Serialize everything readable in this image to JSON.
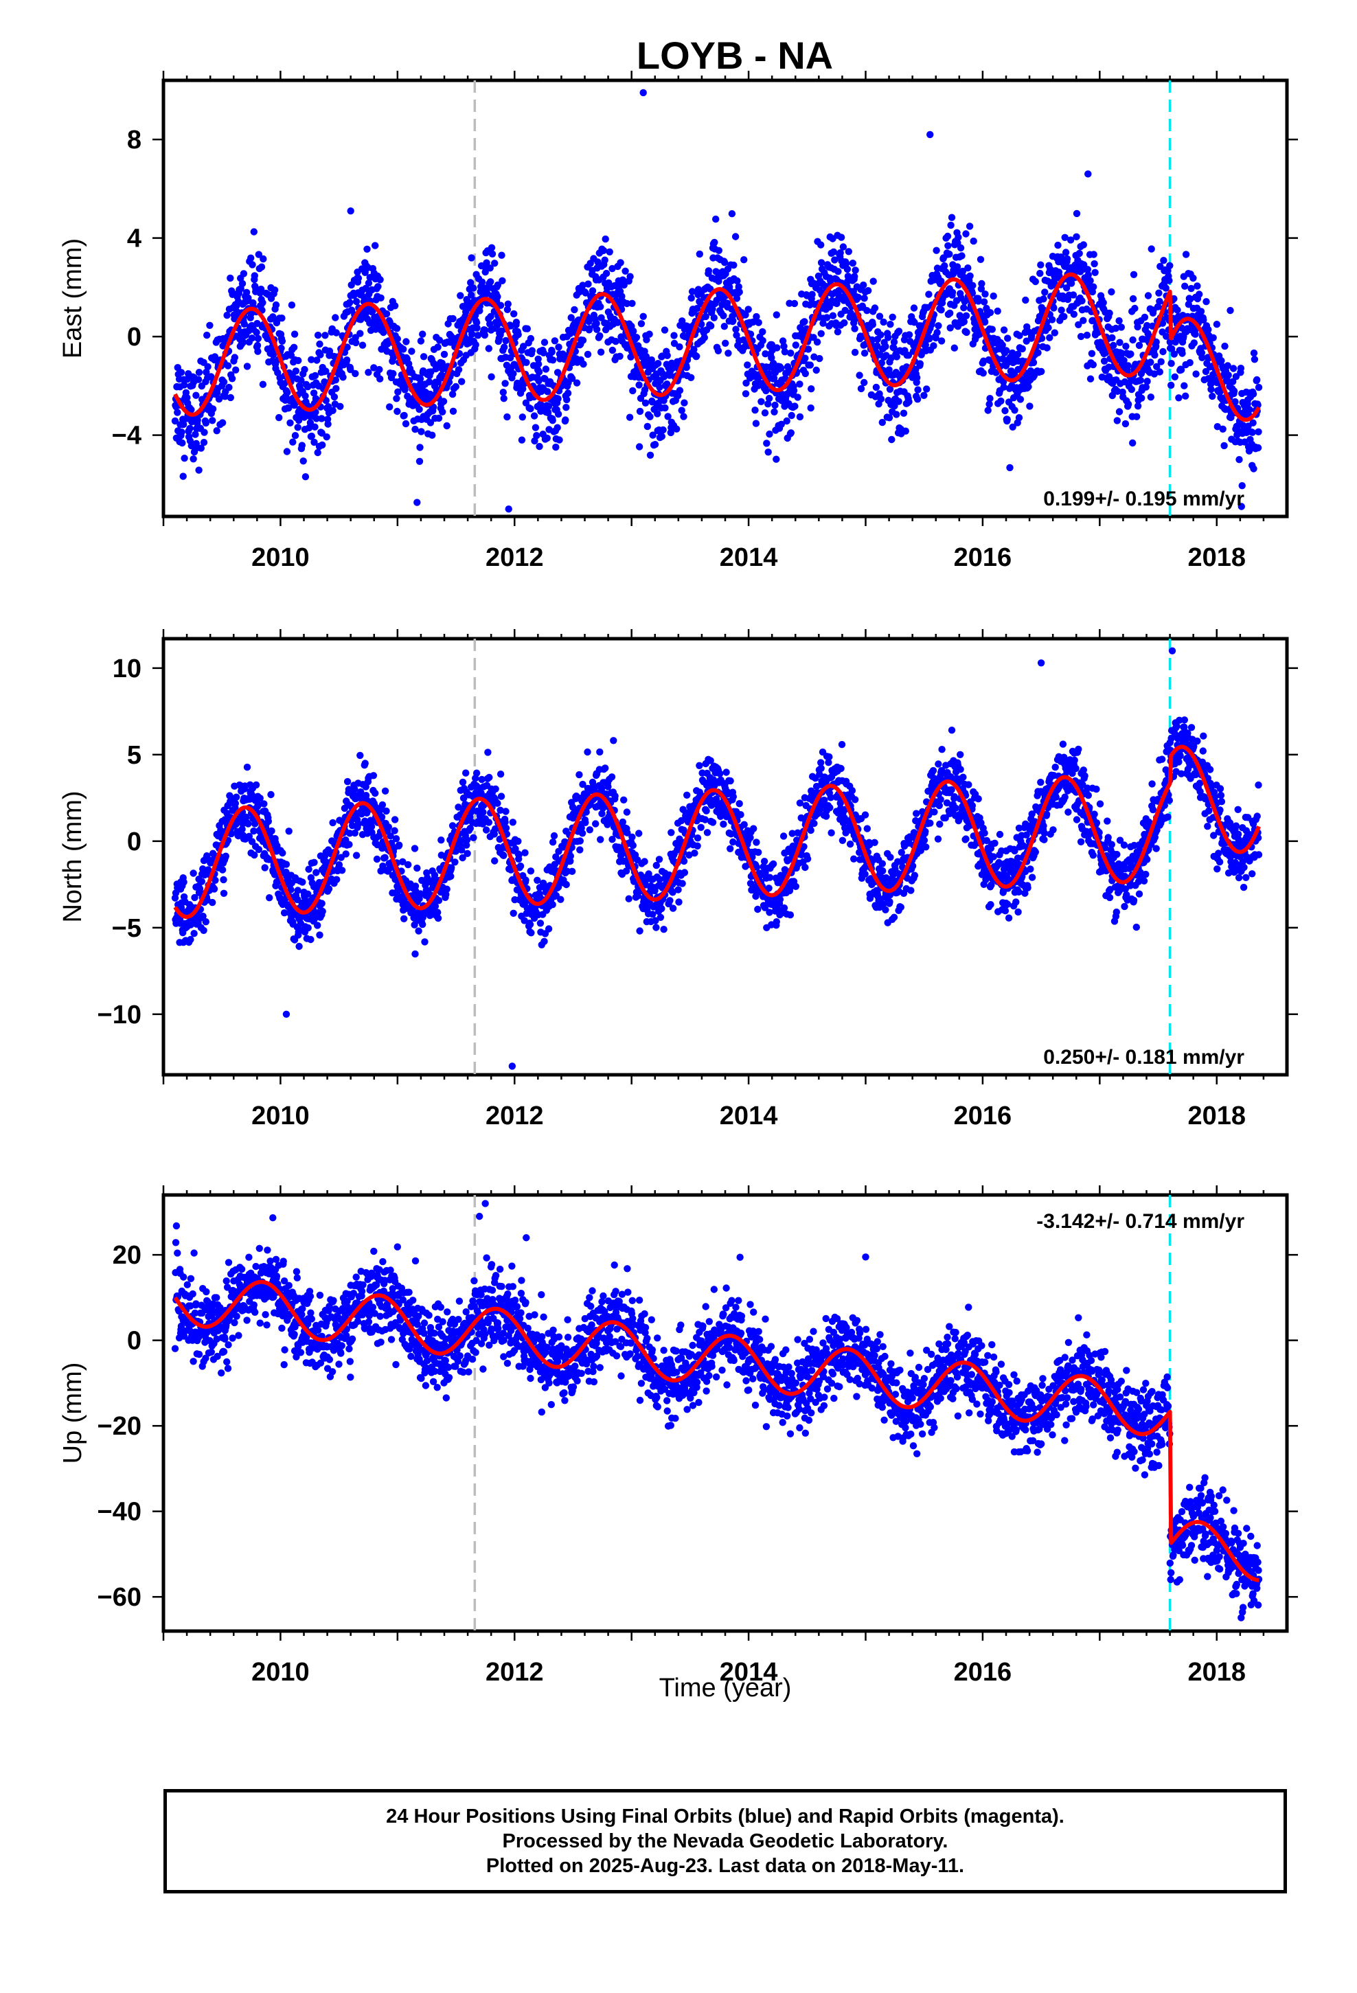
{
  "chart_data": {
    "type": "scatter",
    "title": "LOYB - NA",
    "xlabel": "Time (year)",
    "xlim": [
      2009.0,
      2018.6
    ],
    "x_ticks": [
      2010,
      2012,
      2014,
      2016,
      2018
    ],
    "x_tick_labels": [
      "2010",
      "2012",
      "2014",
      "2016",
      "2018"
    ],
    "vertical_lines": [
      {
        "x": 2011.66,
        "color": "#bdbdbd",
        "style": "dashed"
      },
      {
        "x": 2017.6,
        "color": "#00e5ee",
        "style": "dashed"
      }
    ],
    "data_span": [
      2009.1,
      2018.36
    ],
    "colors": {
      "points": "#0000ff",
      "model": "#ff0000"
    },
    "panels": [
      {
        "ylabel": "East (mm)",
        "ylim": [
          -7.3,
          10.4
        ],
        "y_ticks": [
          -4,
          0,
          4,
          8
        ],
        "y_tick_labels": [
          "−4",
          "0",
          "4",
          "8"
        ],
        "rate_label": "0.199+/- 0.195 mm/yr",
        "rate_position": "bottom-right",
        "model": {
          "offset": -1.1,
          "rate": 0.199,
          "amplitude": 2.1,
          "phase": 0.5,
          "step_at": 2017.6,
          "step": -2.0
        },
        "noise": 1.05,
        "outliers": [
          [
            2013.1,
            9.9
          ],
          [
            2015.55,
            8.2
          ],
          [
            2011.95,
            -7.0
          ],
          [
            2010.6,
            5.1
          ],
          [
            2016.9,
            6.6
          ]
        ]
      },
      {
        "ylabel": "North (mm)",
        "ylim": [
          -13.5,
          11.7
        ],
        "y_ticks": [
          -10,
          -5,
          0,
          5,
          10
        ],
        "y_tick_labels": [
          "−10",
          "−5",
          "0",
          "5",
          "10"
        ],
        "rate_label": "0.250+/- 0.181 mm/yr",
        "rate_position": "bottom-right",
        "model": {
          "offset": -1.3,
          "rate": 0.25,
          "amplitude": 3.1,
          "phase": 0.45,
          "step_at": 2017.6,
          "step": 1.5
        },
        "noise": 1.0,
        "outliers": [
          [
            2010.05,
            -10.0
          ],
          [
            2011.98,
            -13.0
          ],
          [
            2016.5,
            10.3
          ],
          [
            2017.62,
            11.0
          ]
        ]
      },
      {
        "ylabel": "Up (mm)",
        "ylim": [
          -68,
          34
        ],
        "y_ticks": [
          -60,
          -40,
          -20,
          0,
          20
        ],
        "y_tick_labels": [
          "−60",
          "−40",
          "−20",
          "0",
          "20"
        ],
        "rate_label": "-3.142+/- 0.714 mm/yr",
        "rate_position": "top-right",
        "model": {
          "offset": 10.0,
          "rate": -3.142,
          "amplitude": 6.0,
          "phase": 0.6,
          "step_at": 2017.6,
          "step": -31.0
        },
        "noise": 4.5,
        "outliers": [
          [
            2011.75,
            32.0
          ],
          [
            2011.7,
            29.0
          ],
          [
            2012.1,
            24.0
          ],
          [
            2015.0,
            19.5
          ]
        ]
      }
    ]
  },
  "footer": {
    "line1": "24 Hour Positions Using Final Orbits (blue) and Rapid Orbits (magenta).",
    "line2": "Processed by the Nevada Geodetic Laboratory.",
    "line3": "Plotted on 2025-Aug-23. Last data on 2018-May-11."
  }
}
